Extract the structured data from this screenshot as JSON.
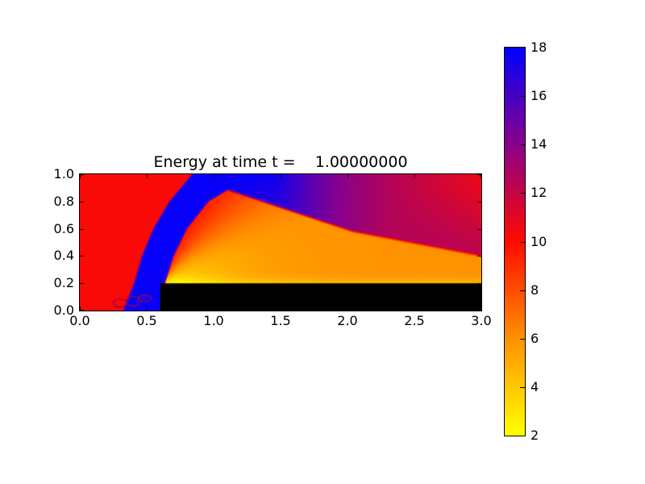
{
  "figure": {
    "background": "#ffffff"
  },
  "chart_data": {
    "type": "heatmap",
    "title": "Energy at time t =    1.00000000",
    "xlabel": "",
    "ylabel": "",
    "x_range": [
      0.0,
      3.0
    ],
    "y_range": [
      0.0,
      1.0
    ],
    "x_ticks": [
      "0.0",
      "0.5",
      "1.0",
      "1.5",
      "2.0",
      "2.5",
      "3.0"
    ],
    "y_ticks": [
      "0.0",
      "0.2",
      "0.4",
      "0.6",
      "0.8",
      "1.0"
    ],
    "grid": false,
    "legend": "none",
    "colorbar": {
      "min": 2,
      "max": 18,
      "tick_labels": [
        "2",
        "4",
        "6",
        "8",
        "10",
        "12",
        "14",
        "16",
        "18"
      ],
      "colormap_stops": [
        {
          "value": 2,
          "color": "#ffff00"
        },
        {
          "value": 6,
          "color": "#ff9100"
        },
        {
          "value": 10,
          "color": "#ff0a00"
        },
        {
          "value": 14,
          "color": "#8a008a"
        },
        {
          "value": 18,
          "color": "#0000ff"
        }
      ]
    },
    "field_model": {
      "upstream_energy": 10.2,
      "bow_shock_energy": 17.8,
      "crimson_wedge_energy": 12.3,
      "shock_front_x_of_y": [
        [
          0.0,
          0.325
        ],
        [
          0.2,
          0.405
        ],
        [
          0.4,
          0.465
        ],
        [
          0.6,
          0.55
        ],
        [
          0.8,
          0.67
        ],
        [
          1.0,
          0.84
        ]
      ],
      "shock_back_x_of_y": [
        [
          0.0,
          0.6
        ],
        [
          0.2,
          0.635
        ],
        [
          0.4,
          0.7
        ],
        [
          0.6,
          0.8
        ],
        [
          0.8,
          0.96
        ],
        [
          1.0,
          1.3
        ]
      ],
      "reflected_shock_y_of_x": [
        [
          0.91,
          0.95
        ],
        [
          2.04,
          0.58
        ],
        [
          3.0,
          0.4
        ]
      ],
      "upper_zone_top_energy_of_x": [
        [
          1.05,
          18
        ],
        [
          1.45,
          17.6
        ],
        [
          1.75,
          15.2
        ],
        [
          2.0,
          13.8
        ],
        [
          2.4,
          12.3
        ],
        [
          3.0,
          10.7
        ]
      ],
      "upper_zone_nearline_energy_of_x": [
        [
          1.05,
          17.8
        ],
        [
          1.5,
          16.8
        ],
        [
          1.9,
          14.2
        ],
        [
          2.3,
          12.6
        ],
        [
          3.0,
          12.2
        ]
      ],
      "expansion_fan": {
        "corner": [
          0.6,
          0.2
        ],
        "min_energy": 2.4,
        "surface_energy": 6.0,
        "max_energy": 10.2,
        "angle_deg_range": [
          18,
          70
        ],
        "surface_glow_depth": 1.1
      },
      "step": {
        "x0": 0.6,
        "x1": 3.0,
        "y0": 0.0,
        "y1": 0.2,
        "color": "#000000"
      },
      "contour_artifacts": {
        "color": "#9c0050",
        "rings": [
          [
            0.3,
            0.055,
            0.05,
            0.03
          ],
          [
            0.4,
            0.068,
            0.055,
            0.035
          ],
          [
            0.485,
            0.09,
            0.05,
            0.022
          ]
        ]
      }
    }
  }
}
